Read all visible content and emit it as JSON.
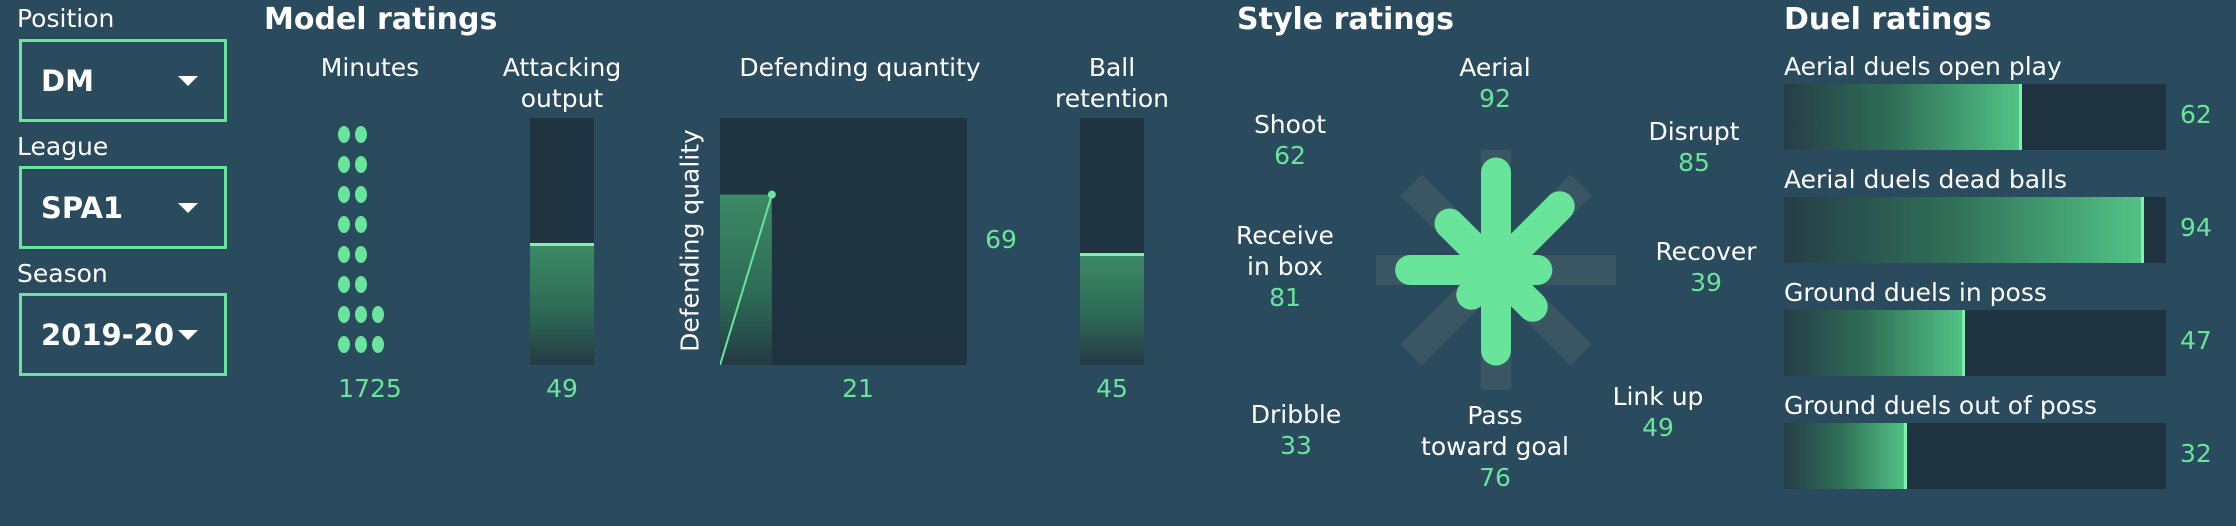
{
  "filters": {
    "position": {
      "label": "Position",
      "value": "DM"
    },
    "league": {
      "label": "League",
      "value": "SPA1"
    },
    "season": {
      "label": "Season",
      "value": "2019-20"
    }
  },
  "model": {
    "title": "Model ratings",
    "minutes": {
      "label": "Minutes",
      "value": "1725"
    },
    "attacking": {
      "label_line1": "Attacking",
      "label_line2": "output",
      "value": "49",
      "fraction": 0.49
    },
    "defending": {
      "title": "Defending quantity",
      "ylabel": "Defending quality",
      "quantity_value": "21",
      "quality_value": "69",
      "quantity_fraction": 0.21,
      "quality_fraction": 0.69
    },
    "retention": {
      "label_line1": "Ball",
      "label_line2": "retention",
      "value": "45",
      "fraction": 0.45
    }
  },
  "style": {
    "title": "Style ratings",
    "items": {
      "aerial": {
        "label": "Aerial",
        "value": "92"
      },
      "shoot": {
        "label": "Shoot",
        "value": "62"
      },
      "disrupt": {
        "label": "Disrupt",
        "value": "85"
      },
      "receive": {
        "label_line1": "Receive",
        "label_line2": "in box",
        "value": "81"
      },
      "recover": {
        "label": "Recover",
        "value": "39"
      },
      "dribble": {
        "label": "Dribble",
        "value": "33"
      },
      "pass": {
        "label_line1": "Pass",
        "label_line2": "toward goal",
        "value": "76"
      },
      "linkup": {
        "label": "Link up",
        "value": "49"
      }
    }
  },
  "duel": {
    "title": "Duel ratings",
    "items": [
      {
        "label": "Aerial duels open play",
        "value": "62",
        "fraction": 0.62
      },
      {
        "label": "Aerial duels dead balls",
        "value": "94",
        "fraction": 0.94
      },
      {
        "label": "Ground duels in poss",
        "value": "47",
        "fraction": 0.47
      },
      {
        "label": "Ground duels out of poss",
        "value": "32",
        "fraction": 0.32
      }
    ]
  },
  "colors": {
    "background": "#2a4a5e",
    "accent": "#69e49b",
    "panel": "#203340"
  }
}
